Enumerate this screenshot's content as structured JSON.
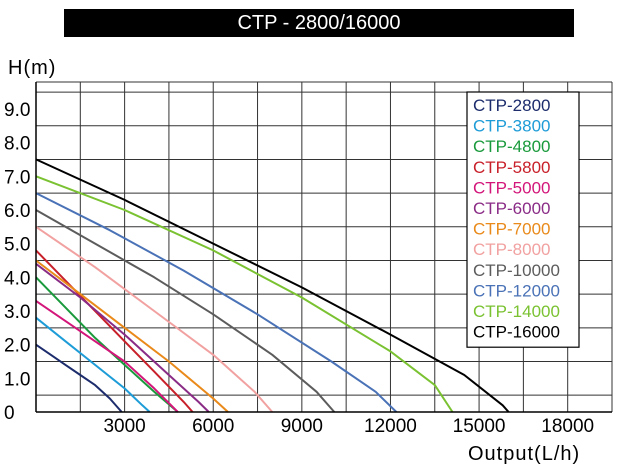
{
  "chart_data": {
    "type": "line",
    "title": "CTP - 2800/16000",
    "xlabel": "Output(L/h)",
    "ylabel": "H(m)",
    "xlim": [
      0,
      19500
    ],
    "ylim": [
      0,
      9.8
    ],
    "grid": true,
    "legend_position": "right",
    "x_ticks": [
      "3000",
      "6000",
      "9000",
      "12000",
      "15000",
      "18000"
    ],
    "x_tick_values": [
      3000,
      6000,
      9000,
      12000,
      15000,
      18000
    ],
    "y_ticks": [
      "0",
      "1.0",
      "2.0",
      "3.0",
      "4.0",
      "5.0",
      "6.0",
      "7.0",
      "8.0",
      "9.0"
    ],
    "y_tick_values": [
      0,
      1,
      2,
      3,
      4,
      5,
      6,
      7,
      8,
      9
    ],
    "series": [
      {
        "name": "CTP-2800",
        "color": "#1c2c6c",
        "points": [
          [
            0,
            2.0
          ],
          [
            500,
            1.7
          ],
          [
            1000,
            1.4
          ],
          [
            1500,
            1.1
          ],
          [
            2000,
            0.8
          ],
          [
            2500,
            0.4
          ],
          [
            2900,
            0
          ]
        ]
      },
      {
        "name": "CTP-3800",
        "color": "#1e9cd7",
        "points": [
          [
            0,
            2.8
          ],
          [
            1000,
            2.1
          ],
          [
            2000,
            1.4
          ],
          [
            3000,
            0.7
          ],
          [
            3600,
            0.2
          ],
          [
            3850,
            0
          ]
        ]
      },
      {
        "name": "CTP-4800",
        "color": "#1a9a3c",
        "points": [
          [
            0,
            4.0
          ],
          [
            1000,
            3.1
          ],
          [
            2000,
            2.2
          ],
          [
            3000,
            1.4
          ],
          [
            4000,
            0.6
          ],
          [
            4800,
            0
          ]
        ]
      },
      {
        "name": "CTP-5800",
        "color": "#c8202a",
        "points": [
          [
            0,
            4.8
          ],
          [
            1000,
            3.9
          ],
          [
            2000,
            3.0
          ],
          [
            3000,
            2.1
          ],
          [
            4000,
            1.2
          ],
          [
            5000,
            0.3
          ],
          [
            5300,
            0
          ]
        ]
      },
      {
        "name": "CTP-5000",
        "color": "#d3167a",
        "points": [
          [
            0,
            3.3
          ],
          [
            1000,
            2.7
          ],
          [
            2000,
            2.1
          ],
          [
            3000,
            1.5
          ],
          [
            4000,
            0.7
          ],
          [
            4800,
            0
          ]
        ]
      },
      {
        "name": "CTP-6000",
        "color": "#8a2c86",
        "points": [
          [
            0,
            4.4
          ],
          [
            1500,
            3.4
          ],
          [
            3000,
            2.3
          ],
          [
            4500,
            1.1
          ],
          [
            5500,
            0.3
          ],
          [
            5850,
            0
          ]
        ]
      },
      {
        "name": "CTP-7000",
        "color": "#e98a1a",
        "points": [
          [
            0,
            4.5
          ],
          [
            1500,
            3.5
          ],
          [
            3000,
            2.5
          ],
          [
            4500,
            1.5
          ],
          [
            6000,
            0.4
          ],
          [
            6500,
            0
          ]
        ]
      },
      {
        "name": "CTP-8000",
        "color": "#f2a1a1",
        "points": [
          [
            0,
            5.5
          ],
          [
            2000,
            4.3
          ],
          [
            4000,
            3.0
          ],
          [
            6000,
            1.7
          ],
          [
            7400,
            0.6
          ],
          [
            8000,
            0
          ]
        ]
      },
      {
        "name": "CTP-10000",
        "color": "#5c5c5c",
        "points": [
          [
            0,
            6.0
          ],
          [
            2000,
            5.0
          ],
          [
            4000,
            4.0
          ],
          [
            6000,
            2.9
          ],
          [
            8000,
            1.7
          ],
          [
            9500,
            0.6
          ],
          [
            10100,
            0
          ]
        ]
      },
      {
        "name": "CTP-12000",
        "color": "#4a72b6",
        "points": [
          [
            0,
            6.5
          ],
          [
            2500,
            5.4
          ],
          [
            5000,
            4.2
          ],
          [
            7500,
            2.9
          ],
          [
            10000,
            1.5
          ],
          [
            11500,
            0.6
          ],
          [
            12200,
            0
          ]
        ]
      },
      {
        "name": "CTP-14000",
        "color": "#7ac231",
        "points": [
          [
            0,
            7.0
          ],
          [
            3000,
            6.0
          ],
          [
            6000,
            4.8
          ],
          [
            9000,
            3.4
          ],
          [
            12000,
            1.8
          ],
          [
            13500,
            0.8
          ],
          [
            14100,
            0
          ]
        ]
      },
      {
        "name": "CTP-16000",
        "color": "#000000",
        "points": [
          [
            0,
            7.5
          ],
          [
            3000,
            6.3
          ],
          [
            6000,
            5.0
          ],
          [
            9000,
            3.7
          ],
          [
            12000,
            2.3
          ],
          [
            14500,
            1.1
          ],
          [
            15800,
            0.2
          ],
          [
            16000,
            0
          ]
        ]
      }
    ]
  }
}
